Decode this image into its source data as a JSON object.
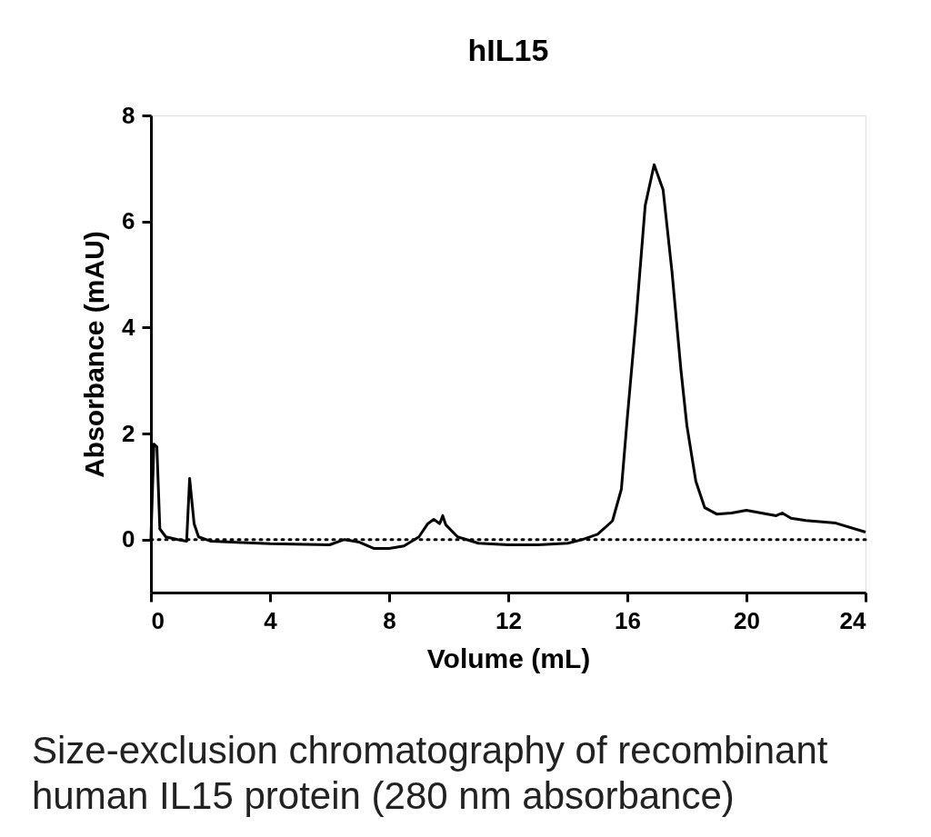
{
  "chart_data": {
    "type": "line",
    "title": "hIL15",
    "xlabel": "Volume (mL)",
    "ylabel": "Absorbance (mAU)",
    "annotations": [
      "Size-exclusion chromatography of recombinant human IL15 protein  (280 nm absorbance)"
    ],
    "xlim": [
      0,
      24
    ],
    "xticks": [
      0,
      4,
      8,
      12,
      16,
      20,
      24
    ],
    "ylim": [
      -1,
      8
    ],
    "yticks": [
      0,
      2,
      4,
      6,
      8
    ],
    "grid": false,
    "marker": "none",
    "line_style": "solid",
    "ref_lines": [
      {
        "axis": "y",
        "value": 0,
        "label": null,
        "color": "#000000",
        "line_style": "dotted"
      }
    ],
    "series": [
      {
        "color": "#000000",
        "x": [
          0,
          0.1,
          0.2,
          0.3,
          0.5,
          0.9,
          1.2,
          1.3,
          1.45,
          1.6,
          2,
          4,
          6,
          6.5,
          7,
          7.5,
          8,
          8.5,
          9,
          9.3,
          9.5,
          9.7,
          9.8,
          9.9,
          10.3,
          11,
          12,
          13,
          14,
          14.5,
          15,
          15.5,
          15.8,
          16,
          16.3,
          16.6,
          16.9,
          17.2,
          17.5,
          17.8,
          18,
          18.3,
          18.6,
          19,
          19.5,
          20,
          20.5,
          21,
          21.2,
          21.5,
          22,
          23,
          24
        ],
        "values": [
          0.0,
          1.8,
          1.75,
          0.2,
          0.05,
          0.0,
          -0.03,
          1.15,
          0.3,
          0.05,
          -0.03,
          -0.08,
          -0.1,
          0.0,
          -0.05,
          -0.17,
          -0.17,
          -0.12,
          0.05,
          0.3,
          0.38,
          0.3,
          0.45,
          0.28,
          0.05,
          -0.07,
          -0.1,
          -0.1,
          -0.07,
          0.0,
          0.1,
          0.35,
          0.95,
          2.3,
          4.2,
          6.3,
          7.07,
          6.6,
          5.05,
          3.2,
          2.15,
          1.1,
          0.6,
          0.48,
          0.5,
          0.55,
          0.5,
          0.45,
          0.5,
          0.4,
          0.36,
          0.31,
          0.14
        ]
      }
    ]
  }
}
